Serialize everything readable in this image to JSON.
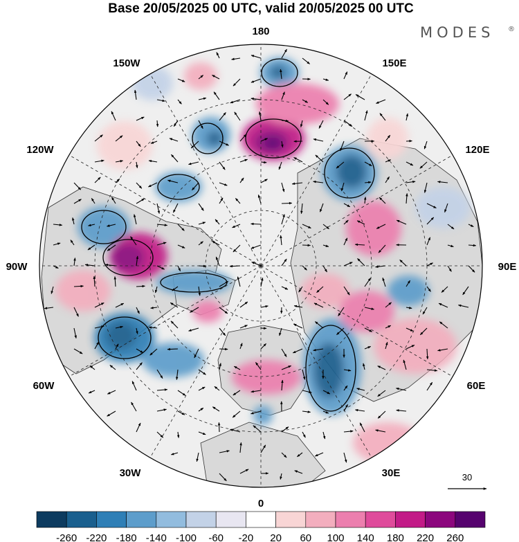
{
  "title": "Base 20/05/2025 00 UTC, valid 20/05/2025 00 UTC",
  "logo": "MODES",
  "logo_mark": "®",
  "longitude_labels": {
    "top": "180",
    "top_left": "150W",
    "top_right": "150E",
    "upper_left": "120W",
    "upper_right": "120E",
    "left": "90W",
    "right": "90E",
    "lower_left": "60W",
    "lower_right": "60E",
    "bottom_left": "30W",
    "bottom_right": "30E",
    "bottom": "0"
  },
  "vector_reference": "30",
  "colorbar": {
    "ticks": [
      "-260",
      "-220",
      "-180",
      "-140",
      "-100",
      "-60",
      "-20",
      "20",
      "60",
      "100",
      "140",
      "180",
      "220",
      "260"
    ],
    "colors": [
      "#0d3b5f",
      "#1a5f8e",
      "#2f7fb6",
      "#5d9dcb",
      "#92bcde",
      "#c3d2e7",
      "#e8e6f1",
      "#ffffff",
      "#f8d5d5",
      "#f3aebe",
      "#ec7fae",
      "#df4b9b",
      "#c21b87",
      "#8c077d",
      "#56036e"
    ]
  },
  "map_colors": {
    "land": "#d9d9d9",
    "ocean": "#efefef",
    "coast": "#333333"
  }
}
